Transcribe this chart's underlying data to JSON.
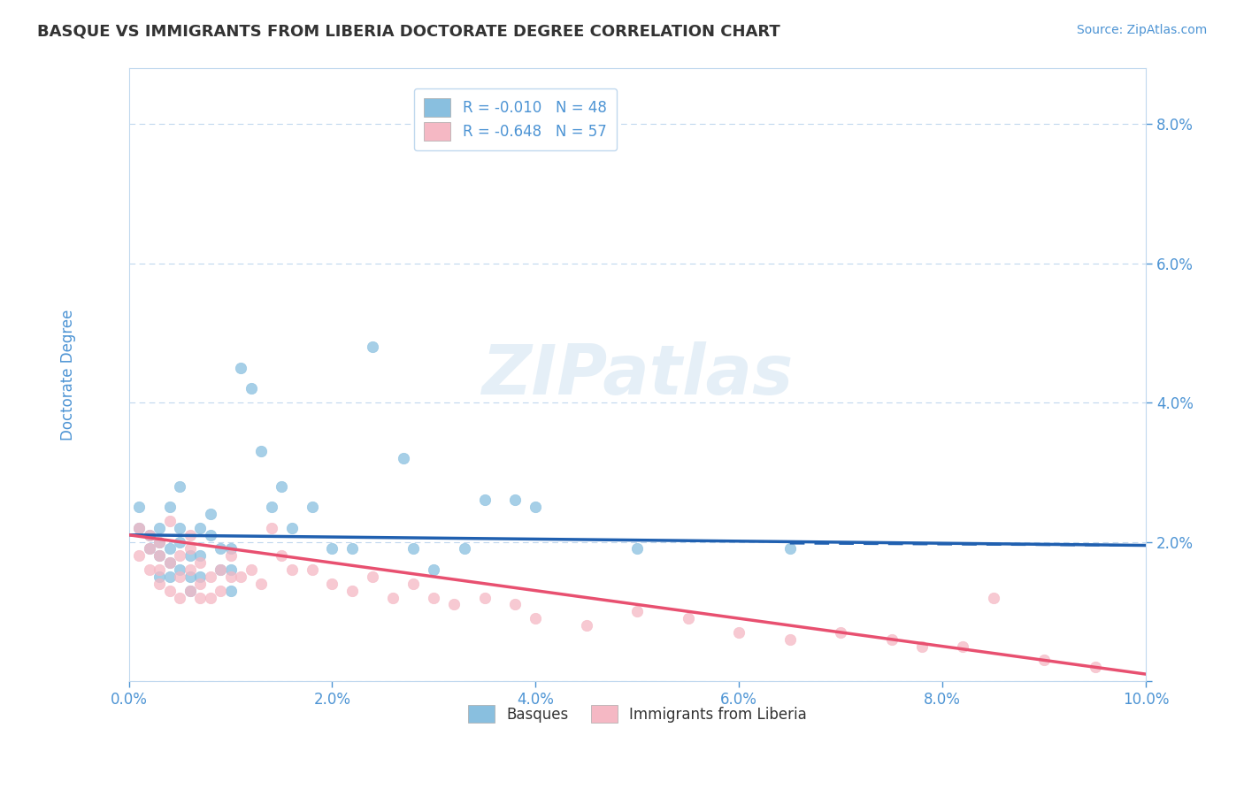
{
  "title": "BASQUE VS IMMIGRANTS FROM LIBERIA DOCTORATE DEGREE CORRELATION CHART",
  "source": "Source: ZipAtlas.com",
  "ylabel": "Doctorate Degree",
  "xlim": [
    0.0,
    0.1
  ],
  "ylim": [
    0.0,
    0.088
  ],
  "yticks": [
    0.0,
    0.02,
    0.04,
    0.06,
    0.08
  ],
  "ytick_labels": [
    "",
    "2.0%",
    "4.0%",
    "6.0%",
    "8.0%"
  ],
  "xticks": [
    0.0,
    0.02,
    0.04,
    0.06,
    0.08,
    0.1
  ],
  "xtick_labels": [
    "0.0%",
    "2.0%",
    "4.0%",
    "6.0%",
    "8.0%",
    "10.0%"
  ],
  "blue_R": -0.01,
  "blue_N": 48,
  "pink_R": -0.648,
  "pink_N": 57,
  "blue_color": "#89bfdf",
  "pink_color": "#f5b8c4",
  "blue_line_color": "#2060b0",
  "pink_line_color": "#e85070",
  "legend_label_blue": "Basques",
  "legend_label_pink": "Immigrants from Liberia",
  "title_color": "#333333",
  "tick_color": "#4d94d4",
  "grid_color": "#c0d8ee",
  "background_color": "#ffffff",
  "blue_scatter_x": [
    0.001,
    0.001,
    0.002,
    0.002,
    0.003,
    0.003,
    0.003,
    0.003,
    0.004,
    0.004,
    0.004,
    0.004,
    0.005,
    0.005,
    0.005,
    0.005,
    0.006,
    0.006,
    0.006,
    0.007,
    0.007,
    0.007,
    0.008,
    0.008,
    0.009,
    0.009,
    0.01,
    0.01,
    0.01,
    0.011,
    0.012,
    0.013,
    0.014,
    0.015,
    0.016,
    0.018,
    0.02,
    0.022,
    0.024,
    0.027,
    0.028,
    0.03,
    0.033,
    0.035,
    0.038,
    0.04,
    0.05,
    0.065
  ],
  "blue_scatter_y": [
    0.025,
    0.022,
    0.019,
    0.021,
    0.018,
    0.02,
    0.022,
    0.015,
    0.019,
    0.017,
    0.015,
    0.025,
    0.016,
    0.02,
    0.022,
    0.028,
    0.013,
    0.015,
    0.018,
    0.015,
    0.018,
    0.022,
    0.021,
    0.024,
    0.016,
    0.019,
    0.013,
    0.016,
    0.019,
    0.045,
    0.042,
    0.033,
    0.025,
    0.028,
    0.022,
    0.025,
    0.019,
    0.019,
    0.048,
    0.032,
    0.019,
    0.016,
    0.019,
    0.026,
    0.026,
    0.025,
    0.019,
    0.019
  ],
  "pink_scatter_x": [
    0.001,
    0.001,
    0.002,
    0.002,
    0.002,
    0.003,
    0.003,
    0.003,
    0.003,
    0.004,
    0.004,
    0.004,
    0.005,
    0.005,
    0.005,
    0.006,
    0.006,
    0.006,
    0.006,
    0.007,
    0.007,
    0.007,
    0.008,
    0.008,
    0.009,
    0.009,
    0.01,
    0.01,
    0.011,
    0.012,
    0.013,
    0.014,
    0.015,
    0.016,
    0.018,
    0.02,
    0.022,
    0.024,
    0.026,
    0.028,
    0.03,
    0.032,
    0.035,
    0.038,
    0.04,
    0.045,
    0.05,
    0.055,
    0.06,
    0.065,
    0.07,
    0.075,
    0.078,
    0.082,
    0.085,
    0.09,
    0.095
  ],
  "pink_scatter_y": [
    0.022,
    0.018,
    0.021,
    0.019,
    0.016,
    0.02,
    0.018,
    0.016,
    0.014,
    0.023,
    0.017,
    0.013,
    0.018,
    0.015,
    0.012,
    0.019,
    0.016,
    0.013,
    0.021,
    0.014,
    0.017,
    0.012,
    0.015,
    0.012,
    0.016,
    0.013,
    0.015,
    0.018,
    0.015,
    0.016,
    0.014,
    0.022,
    0.018,
    0.016,
    0.016,
    0.014,
    0.013,
    0.015,
    0.012,
    0.014,
    0.012,
    0.011,
    0.012,
    0.011,
    0.009,
    0.008,
    0.01,
    0.009,
    0.007,
    0.006,
    0.007,
    0.006,
    0.005,
    0.005,
    0.012,
    0.003,
    0.002
  ],
  "blue_trend_x0": 0.0,
  "blue_trend_x1": 0.1,
  "blue_trend_y0": 0.021,
  "blue_trend_y1": 0.0195,
  "pink_trend_x0": 0.0,
  "pink_trend_x1": 0.1,
  "pink_trend_y0": 0.021,
  "pink_trend_y1": 0.001
}
